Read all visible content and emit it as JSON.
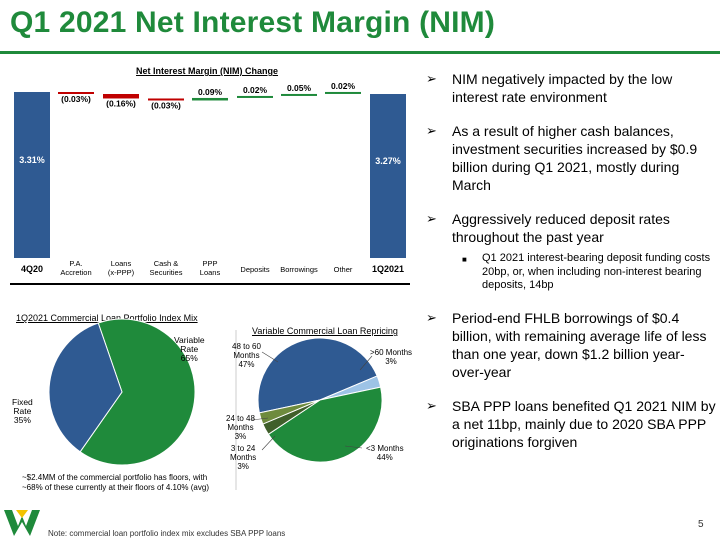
{
  "title": "Q1 2021 Net Interest Margin (NIM)",
  "colors": {
    "brand_green": "#1f8a3b",
    "blue": "#2f5a92",
    "red": "#c00000",
    "light_blue": "#9dc3e6",
    "olive": "#6e8b3d",
    "dark_olive": "#3f5f2a"
  },
  "chart_data": [
    {
      "type": "bar",
      "subtype": "waterfall",
      "title": "Net Interest Margin (NIM) Change",
      "categories": [
        "4Q20",
        "P.A. Accretion",
        "Loans (x-PPP)",
        "Cash & Securities",
        "PPP Loans",
        "Deposits",
        "Borrowings",
        "Other",
        "1Q2021"
      ],
      "values": [
        3.31,
        -0.03,
        -0.16,
        -0.03,
        0.09,
        0.02,
        0.05,
        0.02,
        3.27
      ],
      "data_labels": [
        "3.31%",
        "(0.03%)",
        "(0.16%)",
        "(0.03%)",
        "0.09%",
        "0.02%",
        "0.05%",
        "0.02%",
        "3.27%"
      ],
      "tick_labels": [
        "4Q20",
        "P.A.\nAccretion",
        "Loans\n(x-PPP)",
        "Cash &\nSecurities",
        "PPP\nLoans",
        "Deposits",
        "Borrowings",
        "Other",
        "1Q2021"
      ],
      "units": "%"
    },
    {
      "type": "pie",
      "title": "1Q2021 Commercial Loan Portfolio Index Mix",
      "slices": [
        {
          "label": "Variable Rate",
          "value": 65,
          "display": "Variable\nRate\n65%"
        },
        {
          "label": "Fixed Rate",
          "value": 35,
          "display": "Fixed\nRate\n35%"
        }
      ]
    },
    {
      "type": "pie",
      "title": "Variable Commercial Loan Repricing",
      "slices": [
        {
          "label": "48 to 60 Months",
          "value": 47,
          "display": "48 to 60\nMonths\n47%"
        },
        {
          "label": ">60 Months",
          "value": 3,
          "display": ">60 Months\n3%"
        },
        {
          "label": "<3 Months",
          "value": 44,
          "display": "<3 Months\n44%"
        },
        {
          "label": "3 to 24 Months",
          "value": 3,
          "display": "3 to 24\nMonths\n3%"
        },
        {
          "label": "24 to 48 Months",
          "value": 3,
          "display": "24 to 48\nMonths\n3%"
        }
      ]
    }
  ],
  "pie_footnote": "~$2.4MM of the commercial portfolio has floors, with ~68% of these currently at their floors of 4.10% (avg)",
  "bullets": [
    {
      "text": "NIM negatively impacted by the low interest rate environment"
    },
    {
      "text": "As a result of higher cash balances, investment securities increased by $0.9 billion during Q1 2021, mostly during March"
    },
    {
      "text": "Aggressively reduced deposit rates throughout the past year",
      "sub": "Q1 2021 interest-bearing deposit funding costs 20bp, or, when including non-interest bearing deposits, 14bp"
    },
    {
      "text": "Period-end FHLB borrowings of $0.4 billion, with remaining average life of less than one year, down $1.2 billion year-over-year"
    },
    {
      "text": "SBA PPP loans benefited Q1 2021 NIM by a net 11bp, mainly due to 2020 SBA PPP originations forgiven"
    }
  ],
  "note": "Note: commercial loan portfolio index mix excludes SBA PPP loans",
  "page_number": "5",
  "logo_icon": "company-logo-icon"
}
